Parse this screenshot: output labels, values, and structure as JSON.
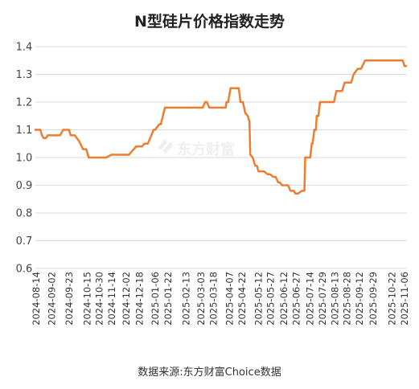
{
  "chart_data": {
    "type": "line",
    "title": "N型硅片价格指数走势",
    "xlabel": "",
    "ylabel": "",
    "ylim": [
      0.6,
      1.4
    ],
    "y_ticks": [
      "0.6",
      "0.7",
      "0.8",
      "0.9",
      "1.0",
      "1.1",
      "1.2",
      "1.3",
      "1.4"
    ],
    "x_range": [
      "2024-08-13",
      "2025-11-09"
    ],
    "x_ticks": [
      "2024-08-14",
      "2024-09-02",
      "2024-09-23",
      "2024-10-15",
      "2024-10-30",
      "2024-11-14",
      "2024-12-02",
      "2024-12-18",
      "2025-01-06",
      "2025-01-22",
      "2025-02-13",
      "2025-03-03",
      "2025-03-18",
      "2025-04-07",
      "2025-04-22",
      "2025-05-12",
      "2025-05-27",
      "2025-06-12",
      "2025-06-27",
      "2025-07-14",
      "2025-07-29",
      "2025-08-13",
      "2025-08-28",
      "2025-09-12",
      "2025-09-29",
      "2025-10-22",
      "2025-11-06"
    ],
    "grid": {
      "x": false,
      "y": true
    },
    "line_color": "#ed7d31",
    "series": [
      {
        "x": [
          "2024-08-13",
          "2024-08-19",
          "2024-08-21",
          "2024-08-23",
          "2024-08-26",
          "2024-08-28",
          "2024-09-05",
          "2024-09-12",
          "2024-09-16",
          "2024-09-23",
          "2024-09-25",
          "2024-09-30",
          "2024-10-05",
          "2024-10-10",
          "2024-10-14",
          "2024-10-17",
          "2024-11-07",
          "2024-11-14",
          "2024-11-26",
          "2024-12-05",
          "2024-12-14",
          "2024-12-21",
          "2024-12-24",
          "2024-12-28",
          "2024-12-31",
          "2025-01-04",
          "2025-01-06",
          "2025-01-11",
          "2025-01-13",
          "2025-01-18",
          "2025-02-20",
          "2025-02-26",
          "2025-03-05",
          "2025-03-08",
          "2025-03-10",
          "2025-03-13",
          "2025-03-28",
          "2025-03-30",
          "2025-04-02",
          "2025-04-03",
          "2025-04-05",
          "2025-04-08",
          "2025-04-18",
          "2025-04-20",
          "2025-04-23",
          "2025-04-26",
          "2025-04-29",
          "2025-05-01",
          "2025-05-02",
          "2025-05-05",
          "2025-05-08",
          "2025-05-10",
          "2025-05-12",
          "2025-05-19",
          "2025-05-23",
          "2025-05-26",
          "2025-05-30",
          "2025-06-02",
          "2025-06-05",
          "2025-06-07",
          "2025-06-10",
          "2025-06-17",
          "2025-06-20",
          "2025-06-24",
          "2025-06-26",
          "2025-06-29",
          "2025-07-04",
          "2025-07-07",
          "2025-07-08",
          "2025-07-09",
          "2025-07-10",
          "2025-07-14",
          "2025-07-16",
          "2025-07-17",
          "2025-07-19",
          "2025-07-21",
          "2025-07-22",
          "2025-07-24",
          "2025-07-26",
          "2025-07-28",
          "2025-08-02",
          "2025-08-10",
          "2025-08-12",
          "2025-08-15",
          "2025-08-22",
          "2025-08-25",
          "2025-09-02",
          "2025-09-05",
          "2025-09-10",
          "2025-09-14",
          "2025-09-19",
          "2025-09-21",
          "2025-09-22",
          "2025-09-24",
          "2025-09-26",
          "2025-11-02",
          "2025-11-04",
          "2025-11-06",
          "2025-11-08"
        ],
        "values": [
          1.1,
          1.1,
          1.08,
          1.07,
          1.07,
          1.08,
          1.08,
          1.08,
          1.1,
          1.1,
          1.08,
          1.08,
          1.06,
          1.03,
          1.03,
          1.0,
          1.0,
          1.01,
          1.01,
          1.01,
          1.04,
          1.04,
          1.05,
          1.05,
          1.07,
          1.1,
          1.1,
          1.12,
          1.12,
          1.18,
          1.18,
          1.18,
          1.18,
          1.2,
          1.2,
          1.18,
          1.18,
          1.18,
          1.18,
          1.2,
          1.2,
          1.25,
          1.25,
          1.2,
          1.2,
          1.16,
          1.15,
          1.13,
          1.01,
          1.0,
          0.97,
          0.97,
          0.95,
          0.95,
          0.94,
          0.94,
          0.93,
          0.93,
          0.91,
          0.91,
          0.9,
          0.9,
          0.88,
          0.88,
          0.87,
          0.87,
          0.88,
          0.88,
          1.0,
          1.0,
          1.0,
          1.0,
          1.05,
          1.05,
          1.1,
          1.1,
          1.15,
          1.15,
          1.2,
          1.2,
          1.2,
          1.2,
          1.2,
          1.24,
          1.24,
          1.27,
          1.27,
          1.3,
          1.32,
          1.32,
          1.35,
          1.35,
          1.35,
          1.35,
          1.35,
          1.35,
          1.35,
          1.33,
          1.33
        ]
      }
    ],
    "watermark": "东方财富",
    "source": "数据来源:东方财富Choice数据"
  }
}
